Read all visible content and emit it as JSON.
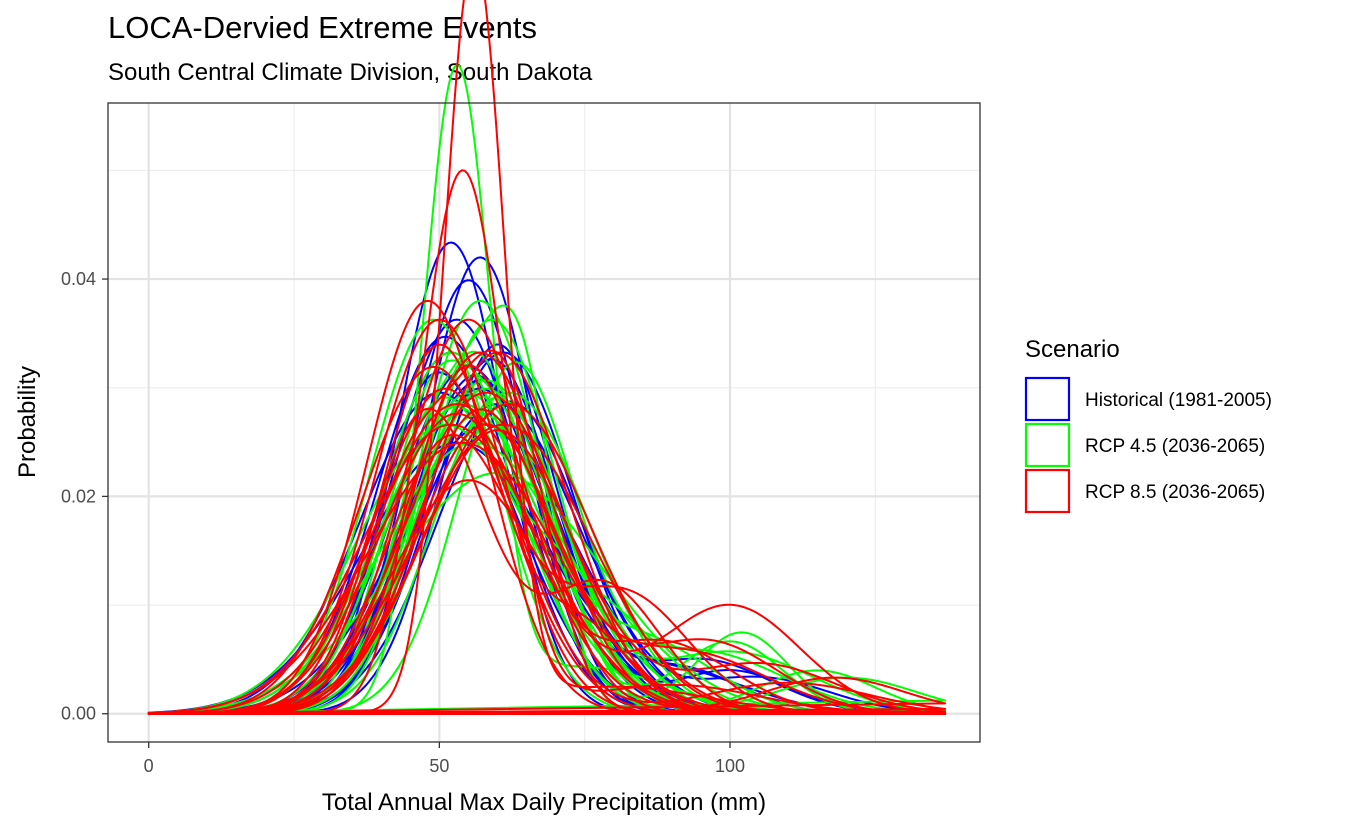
{
  "chart_data": {
    "type": "line",
    "title": "LOCA-Dervied Extreme Events",
    "subtitle": "South Central Climate Division, South Dakota",
    "xlabel": "Total Annual Max Daily Precipitation (mm)",
    "ylabel": "Probability",
    "xlim": [
      -7,
      143
    ],
    "ylim": [
      -0.0026,
      0.0562
    ],
    "x_ticks": [
      0,
      50,
      100
    ],
    "x_tick_labels": [
      "0",
      "50",
      "100"
    ],
    "y_ticks": [
      0.0,
      0.02,
      0.04
    ],
    "y_tick_labels": [
      "0.00",
      "0.02",
      "0.04"
    ],
    "x_range_curves": [
      0,
      137
    ],
    "grid": true,
    "legend": {
      "title": "Scenario",
      "position": "right",
      "entries": [
        {
          "label": "Historical (1981-2005)",
          "color": "#0000ff"
        },
        {
          "label": "RCP 4.5 (2036-2065)",
          "color": "#00ff00"
        },
        {
          "label": "RCP 8.5 (2036-2065)",
          "color": "#ff0000"
        }
      ]
    },
    "series": [
      {
        "name": "Historical (1981-2005)",
        "color": "#0000ff",
        "curves": [
          {
            "components": [
              [
                1.0,
                52,
                9.2
              ]
            ]
          },
          {
            "components": [
              [
                1.0,
                57,
                9.5
              ]
            ]
          },
          {
            "components": [
              [
                1.0,
                51,
                11.5
              ]
            ]
          },
          {
            "components": [
              [
                1.0,
                53,
                11.0
              ]
            ]
          },
          {
            "components": [
              [
                0.85,
                60,
                10.0
              ],
              [
                0.15,
                95,
                12.0
              ]
            ]
          },
          {
            "components": [
              [
                1.0,
                55,
                12.5
              ]
            ]
          },
          {
            "components": [
              [
                0.6,
                48,
                9.0
              ],
              [
                0.4,
                66,
                12.0
              ]
            ]
          },
          {
            "components": [
              [
                1.0,
                57,
                13.0
              ]
            ]
          },
          {
            "components": [
              [
                1.0,
                54,
                14.0
              ]
            ]
          },
          {
            "components": [
              [
                0.9,
                59,
                11.0
              ],
              [
                0.1,
                100,
                10.0
              ]
            ]
          },
          {
            "components": [
              [
                1.0,
                61,
                12.0
              ]
            ]
          },
          {
            "components": [
              [
                1.0,
                50,
                13.5
              ]
            ]
          },
          {
            "components": [
              [
                0.85,
                56,
                11.0
              ],
              [
                0.15,
                88,
                14.0
              ]
            ]
          },
          {
            "components": [
              [
                1.0,
                58,
                15.0
              ]
            ]
          },
          {
            "components": [
              [
                1.0,
                53,
                16.0
              ]
            ]
          },
          {
            "components": [
              [
                0.9,
                62,
                12.5
              ],
              [
                0.1,
                105,
                12.0
              ]
            ]
          },
          {
            "components": [
              [
                1.0,
                55,
                10.0
              ]
            ]
          },
          {
            "components": [
              [
                1.0,
                60,
                14.0
              ]
            ]
          },
          {
            "components": [
              [
                1.0,
                52,
                12.0
              ]
            ]
          },
          {
            "components": [
              [
                0.9,
                57,
                12.0
              ],
              [
                0.1,
                92,
                10.0
              ]
            ]
          }
        ]
      },
      {
        "name": "RCP 4.5 (2036-2065)",
        "color": "#00ff00",
        "curves": [
          {
            "components": [
              [
                0.85,
                53,
                5.8
              ],
              [
                0.15,
                75,
                14.0
              ]
            ]
          },
          {
            "components": [
              [
                0.6,
                51,
                8.5
              ],
              [
                0.4,
                64,
                6.0
              ]
            ]
          },
          {
            "components": [
              [
                1.0,
                57,
                10.5
              ]
            ]
          },
          {
            "components": [
              [
                0.5,
                48,
                8.0
              ],
              [
                0.5,
                63,
                9.0
              ]
            ]
          },
          {
            "components": [
              [
                0.85,
                55,
                11.5
              ],
              [
                0.15,
                100,
                9.0
              ]
            ]
          },
          {
            "components": [
              [
                1.0,
                58,
                13.0
              ]
            ]
          },
          {
            "components": [
              [
                1.0,
                60,
                18.0
              ]
            ]
          },
          {
            "components": [
              [
                0.8,
                56,
                11.0
              ],
              [
                0.2,
                85,
                12.0
              ]
            ]
          },
          {
            "components": [
              [
                1.0,
                52,
                12.0
              ]
            ]
          },
          {
            "components": [
              [
                0.8,
                60,
                11.0
              ],
              [
                0.2,
                100,
                14.0
              ]
            ]
          },
          {
            "components": [
              [
                1.0,
                54,
                14.0
              ]
            ]
          },
          {
            "components": [
              [
                0.7,
                50,
                10.0
              ],
              [
                0.3,
                72,
                10.0
              ]
            ]
          },
          {
            "components": [
              [
                1.0,
                62,
                13.5
              ]
            ]
          },
          {
            "components": [
              [
                0.9,
                58,
                12.0
              ],
              [
                0.1,
                115,
                10.0
              ]
            ]
          },
          {
            "components": [
              [
                1.0,
                49,
                11.0
              ]
            ]
          },
          {
            "components": [
              [
                0.8,
                63,
                10.0
              ],
              [
                0.2,
                95,
                14.0
              ]
            ]
          },
          {
            "components": [
              [
                1.0,
                56,
                16.0
              ]
            ]
          },
          {
            "components": [
              [
                0.85,
                53,
                12.0
              ],
              [
                0.15,
                102,
                8.0
              ]
            ]
          },
          {
            "components": [
              [
                1.0,
                59,
                11.0
              ]
            ]
          },
          {
            "components": [
              [
                0.7,
                55,
                9.0
              ],
              [
                0.3,
                76,
                12.0
              ]
            ]
          },
          {
            "components": [
              [
                1.0,
                51,
                15.0
              ]
            ]
          },
          {
            "components": [
              [
                0.9,
                57,
                13.0
              ],
              [
                0.1,
                120,
                12.0
              ]
            ]
          }
        ]
      },
      {
        "name": "RCP 8.5 (2036-2065)",
        "color": "#ff0000",
        "curves": [
          {
            "components": [
              [
                0.9,
                56,
                5.2
              ],
              [
                0.1,
                80,
                16.0
              ]
            ]
          },
          {
            "components": [
              [
                0.9,
                54,
                7.2
              ],
              [
                0.1,
                90,
                15.0
              ]
            ]
          },
          {
            "components": [
              [
                0.7,
                48,
                10.0
              ],
              [
                0.3,
                78,
                10.0
              ]
            ]
          },
          {
            "components": [
              [
                0.55,
                47,
                9.0
              ],
              [
                0.45,
                62,
                7.0
              ]
            ]
          },
          {
            "components": [
              [
                0.7,
                55,
                13.0
              ],
              [
                0.3,
                100,
                12.0
              ]
            ]
          },
          {
            "components": [
              [
                1.0,
                57,
                12.0
              ]
            ]
          },
          {
            "components": [
              [
                1.0,
                50,
                11.0
              ]
            ]
          },
          {
            "components": [
              [
                1.0,
                53,
                14.0
              ]
            ]
          },
          {
            "components": [
              [
                0.85,
                60,
                13.0
              ],
              [
                0.15,
                105,
                13.0
              ]
            ]
          },
          {
            "components": [
              [
                1.0,
                52,
                15.0
              ]
            ]
          },
          {
            "components": [
              [
                0.8,
                55,
                10.0
              ],
              [
                0.2,
                88,
                12.0
              ]
            ]
          },
          {
            "components": [
              [
                1.0,
                58,
                13.5
              ]
            ]
          },
          {
            "components": [
              [
                0.9,
                51,
                12.0
              ],
              [
                0.1,
                110,
                14.0
              ]
            ]
          },
          {
            "components": [
              [
                1.0,
                62,
                14.0
              ]
            ]
          },
          {
            "components": [
              [
                1.0,
                49,
                12.5
              ]
            ]
          },
          {
            "components": [
              [
                0.8,
                57,
                11.5
              ],
              [
                0.2,
                92,
                14.0
              ]
            ]
          },
          {
            "components": [
              [
                1.0,
                54,
                16.0
              ]
            ]
          },
          {
            "components": [
              [
                0.85,
                50,
                10.0
              ],
              [
                0.15,
                75,
                8.0
              ]
            ]
          },
          {
            "components": [
              [
                1.0,
                60,
                12.0
              ]
            ]
          },
          {
            "components": [
              [
                0.9,
                53,
                13.0
              ],
              [
                0.1,
                118,
                12.0
              ]
            ]
          },
          {
            "components": [
              [
                1.0,
                48,
                10.5
              ]
            ]
          },
          {
            "components": [
              [
                0.8,
                58,
                12.0
              ],
              [
                0.2,
                96,
                12.0
              ]
            ]
          },
          {
            "components": [
              [
                1.0,
                55,
                11.0
              ]
            ]
          },
          {
            "components": [
              [
                1.0,
                61,
                15.0
              ]
            ]
          },
          {
            "components": [
              [
                0.7,
                52,
                11.0
              ],
              [
                0.3,
                82,
                11.0
              ]
            ]
          }
        ]
      }
    ]
  }
}
